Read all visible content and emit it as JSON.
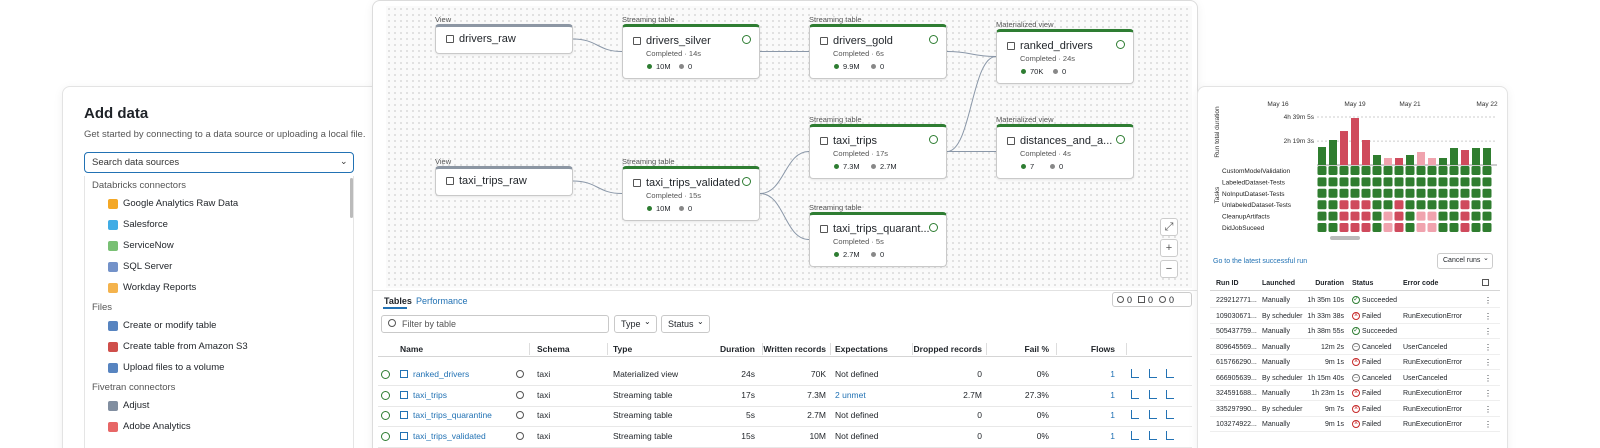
{
  "add_data": {
    "title": "Add data",
    "subtitle": "Get started by connecting to a data source or uploading a local file.",
    "search_placeholder": "Search data sources",
    "sections": [
      {
        "heading": "Databricks connectors",
        "items": [
          "Google Analytics Raw Data",
          "Salesforce",
          "ServiceNow",
          "SQL Server",
          "Workday Reports"
        ]
      },
      {
        "heading": "Files",
        "items": [
          "Create or modify table",
          "Create table from Amazon S3",
          "Upload files to a volume"
        ]
      },
      {
        "heading": "Fivetran connectors",
        "items": [
          "Adjust",
          "Adobe Analytics"
        ]
      }
    ]
  },
  "pipeline": {
    "nodes": [
      {
        "kind": "View",
        "name": "drivers_raw"
      },
      {
        "kind": "Streaming table",
        "name": "drivers_silver",
        "status": "Completed · 14s",
        "records": "10M",
        "dropped": "0"
      },
      {
        "kind": "Streaming table",
        "name": "drivers_gold",
        "status": "Completed · 6s",
        "records": "9.9M",
        "dropped": "0"
      },
      {
        "kind": "Materialized view",
        "name": "ranked_drivers",
        "status": "Completed · 24s",
        "records": "70K",
        "dropped": "0"
      },
      {
        "kind": "View",
        "name": "taxi_trips_raw"
      },
      {
        "kind": "Streaming table",
        "name": "taxi_trips_validated",
        "status": "Completed · 15s",
        "records": "10M",
        "dropped": "0"
      },
      {
        "kind": "Streaming table",
        "name": "taxi_trips",
        "status": "Completed · 17s",
        "records": "7.3M",
        "dropped": "2.7M"
      },
      {
        "kind": "Streaming table",
        "name": "taxi_trips_quarant...",
        "status": "Completed · 5s",
        "records": "2.7M",
        "dropped": "0"
      },
      {
        "kind": "Materialized view",
        "name": "distances_and_a...",
        "status": "Completed · 4s",
        "records": "7",
        "dropped": "0"
      }
    ],
    "tabs": [
      "Tables",
      "Performance"
    ],
    "counts": [
      0,
      0,
      0
    ],
    "filter_placeholder": "Filter by table",
    "filters": [
      "Type",
      "Status"
    ],
    "columns": [
      "Name",
      "Schema",
      "Type",
      "Duration",
      "Written records",
      "Expectations",
      "Dropped records",
      "Fail %",
      "Flows"
    ],
    "rows": [
      [
        "ranked_drivers",
        "taxi",
        "Materialized view",
        "24s",
        "70K",
        "Not defined",
        "0",
        "0%",
        "1"
      ],
      [
        "taxi_trips",
        "taxi",
        "Streaming table",
        "17s",
        "7.3M",
        "2 unmet",
        "2.7M",
        "27.3%",
        "1"
      ],
      [
        "taxi_trips_quarantine",
        "taxi",
        "Streaming table",
        "5s",
        "2.7M",
        "Not defined",
        "0",
        "0%",
        "1"
      ],
      [
        "taxi_trips_validated",
        "taxi",
        "Streaming table",
        "15s",
        "10M",
        "Not defined",
        "0",
        "0%",
        "1"
      ]
    ]
  },
  "chart_data": {
    "type": "bar",
    "ylabel": "Run total duration",
    "categories": [
      "May 16",
      null,
      null,
      null,
      null,
      null,
      null,
      "May 19",
      null,
      null,
      null,
      null,
      "May 21",
      null,
      null,
      null,
      null,
      null,
      null,
      "May 22"
    ],
    "values": [
      null,
      null,
      null,
      null,
      6280,
      8725,
      11860,
      16400,
      8725,
      3490,
      2440,
      2440,
      3490,
      4540,
      2440,
      2440,
      5930,
      5230,
      5930,
      5930
    ],
    "colors": [
      null,
      null,
      null,
      null,
      "#2f7d2f",
      "#2f7d2f",
      "#cf4a5c",
      "#cf4a5c",
      "#cf4a5c",
      "#2f7d2f",
      "#f0a3ae",
      "#cf4a5c",
      "#2f7d2f",
      "#f0a3ae",
      "#f0a3ae",
      "#2f7d2f",
      "#2f7d2f",
      "#cf4a5c",
      "#2f7d2f",
      "#2f7d2f"
    ],
    "ylim": [
      0,
      18500
    ],
    "yticks": [
      {
        "value": 8343,
        "label": "2h 19m 3s"
      },
      {
        "value": 16745,
        "label": "4h 39m 5s"
      }
    ],
    "tasks_label": "Tasks",
    "tasks": [
      "CustomModelValidation",
      "LabeledDataset-Tests",
      "NoInputDataset-Tests",
      "UnlabeledDataset-Tests",
      "CleanupArtifacts",
      "DidJobSuceed"
    ]
  },
  "runs": {
    "link": "Go to the latest successful run",
    "button": "Cancel runs",
    "columns": [
      "Run ID",
      "Launched",
      "Duration",
      "Status",
      "Error code"
    ],
    "rows": [
      [
        "229212771...",
        "Manually",
        "1h 35m 10s",
        "Succeeded",
        null
      ],
      [
        "109030671...",
        "By scheduler",
        "1h 33m 38s",
        "Failed",
        "RunExecutionError"
      ],
      [
        "505437759...",
        "Manually",
        "1h 38m 55s",
        "Succeeded",
        null
      ],
      [
        "809645569...",
        "Manually",
        "12m 2s",
        "Canceled",
        "UserCanceled"
      ],
      [
        "615766290...",
        "Manually",
        "9m 1s",
        "Failed",
        "RunExecutionError"
      ],
      [
        "666905639...",
        "By scheduler",
        "1h 15m 40s",
        "Canceled",
        "UserCanceled"
      ],
      [
        "324591688...",
        "Manually",
        "1h 23m 1s",
        "Failed",
        "RunExecutionError"
      ],
      [
        "335297990...",
        "By scheduler",
        "9m 7s",
        "Failed",
        "RunExecutionError"
      ],
      [
        "103274922...",
        "Manually",
        "9m 1s",
        "Failed",
        "RunExecutionError"
      ]
    ]
  }
}
